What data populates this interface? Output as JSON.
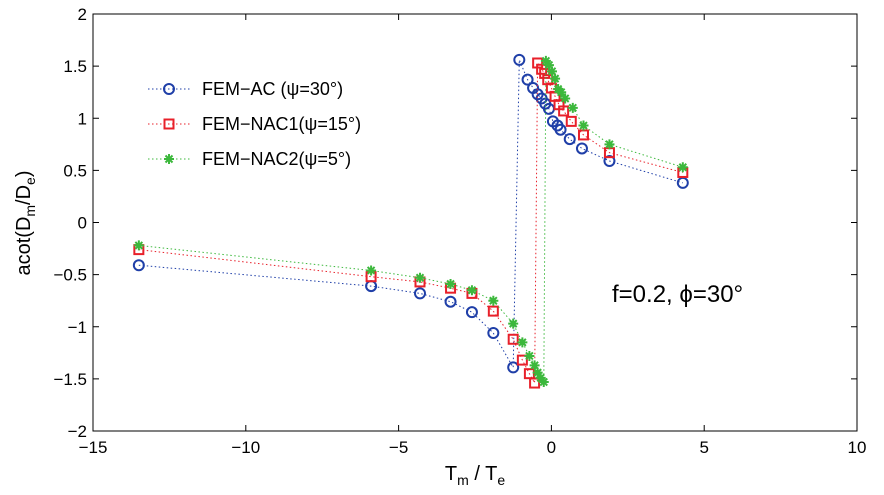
{
  "chart_data": {
    "type": "scatter",
    "xlabel": {
      "main": "T",
      "sub1": "m",
      "sep": " / T",
      "sub2": "e"
    },
    "ylabel": {
      "main": "acot(D",
      "sub1": "m",
      "sep": "/D",
      "sub2": "e",
      "end": ")"
    },
    "xlim": [
      -15,
      10
    ],
    "ylim": [
      -2,
      2
    ],
    "xticks": [
      -15,
      -10,
      -5,
      0,
      5,
      10
    ],
    "yticks": [
      -2,
      -1.5,
      -1,
      -0.5,
      0,
      0.5,
      1,
      1.5,
      2
    ],
    "xtick_labels": [
      "−15",
      "−10",
      "−5",
      "0",
      "5",
      "10"
    ],
    "ytick_labels": [
      "−2",
      "−1.5",
      "−1",
      "−0.5",
      "0",
      "0.5",
      "1",
      "1.5",
      "2"
    ],
    "grid": false,
    "legend_position": "top-left",
    "annotation": "f=0.2, ϕ=30°",
    "series": [
      {
        "name": "FEM−AC (ψ=30°)",
        "color": "#1f3fa8",
        "marker": "circle",
        "points": [
          [
            -13.5,
            -0.41
          ],
          [
            -5.9,
            -0.61
          ],
          [
            -4.3,
            -0.68
          ],
          [
            -3.3,
            -0.76
          ],
          [
            -2.6,
            -0.86
          ],
          [
            -1.9,
            -1.06
          ],
          [
            -1.25,
            -1.39
          ],
          [
            -1.05,
            1.56
          ],
          [
            -0.78,
            1.37
          ],
          [
            -0.6,
            1.29
          ],
          [
            -0.45,
            1.23
          ],
          [
            -0.32,
            1.19
          ],
          [
            -0.2,
            1.14
          ],
          [
            -0.08,
            1.09
          ],
          [
            0.05,
            0.97
          ],
          [
            0.2,
            0.93
          ],
          [
            0.3,
            0.89
          ],
          [
            0.6,
            0.8
          ],
          [
            1.0,
            0.71
          ],
          [
            1.9,
            0.59
          ],
          [
            4.3,
            0.38
          ]
        ]
      },
      {
        "name": "FEM−NAC1(ψ=15°)",
        "color": "#e8202a",
        "marker": "square",
        "points": [
          [
            -13.5,
            -0.26
          ],
          [
            -5.9,
            -0.52
          ],
          [
            -4.3,
            -0.57
          ],
          [
            -3.3,
            -0.63
          ],
          [
            -2.6,
            -0.68
          ],
          [
            -1.9,
            -0.85
          ],
          [
            -1.25,
            -1.12
          ],
          [
            -0.95,
            -1.32
          ],
          [
            -0.72,
            -1.45
          ],
          [
            -0.55,
            -1.54
          ],
          [
            -0.45,
            1.53
          ],
          [
            -0.32,
            1.47
          ],
          [
            -0.22,
            1.43
          ],
          [
            -0.12,
            1.37
          ],
          [
            0.0,
            1.29
          ],
          [
            0.12,
            1.21
          ],
          [
            0.25,
            1.13
          ],
          [
            0.4,
            1.07
          ],
          [
            0.65,
            0.97
          ],
          [
            1.05,
            0.84
          ],
          [
            1.9,
            0.67
          ],
          [
            4.3,
            0.48
          ]
        ]
      },
      {
        "name": "FEM−NAC2(ψ=5°)",
        "color": "#3cb83c",
        "marker": "star",
        "points": [
          [
            -13.5,
            -0.22
          ],
          [
            -5.9,
            -0.46
          ],
          [
            -4.3,
            -0.53
          ],
          [
            -3.3,
            -0.59
          ],
          [
            -2.6,
            -0.65
          ],
          [
            -1.9,
            -0.75
          ],
          [
            -1.25,
            -0.97
          ],
          [
            -0.95,
            -1.15
          ],
          [
            -0.72,
            -1.28
          ],
          [
            -0.55,
            -1.37
          ],
          [
            -0.45,
            -1.44
          ],
          [
            -0.35,
            -1.49
          ],
          [
            -0.25,
            -1.53
          ],
          [
            -0.18,
            1.55
          ],
          [
            -0.08,
            1.51
          ],
          [
            0.02,
            1.45
          ],
          [
            0.12,
            1.38
          ],
          [
            0.22,
            1.28
          ],
          [
            0.32,
            1.25
          ],
          [
            0.45,
            1.19
          ],
          [
            0.7,
            1.1
          ],
          [
            1.05,
            0.93
          ],
          [
            1.9,
            0.75
          ],
          [
            4.3,
            0.53
          ]
        ]
      }
    ]
  }
}
